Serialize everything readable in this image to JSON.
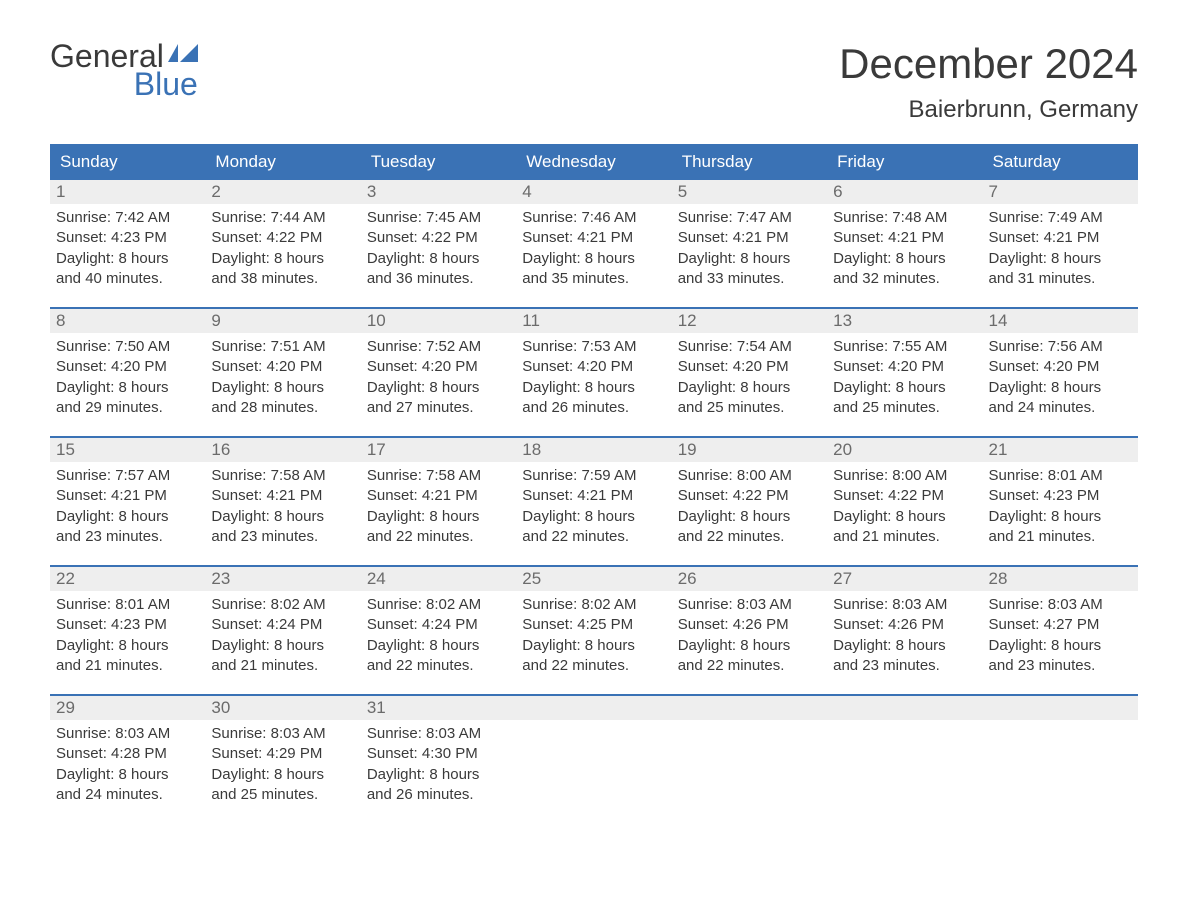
{
  "brand": {
    "word1": "General",
    "word2": "Blue",
    "word1_color": "#3a3a3a",
    "word2_color": "#3a72b5",
    "flag_color": "#3a72b5"
  },
  "title": "December 2024",
  "location": "Baierbrunn, Germany",
  "colors": {
    "header_bg": "#3a72b5",
    "header_text": "#ffffff",
    "daynum_bg": "#eeeeee",
    "daynum_text": "#6b6b6b",
    "body_text": "#3a3a3a",
    "week_divider": "#3a72b5",
    "page_bg": "#ffffff"
  },
  "typography": {
    "title_fontsize": 42,
    "location_fontsize": 24,
    "dayheader_fontsize": 17,
    "daynum_fontsize": 17,
    "body_fontsize": 15,
    "logo_fontsize": 32
  },
  "day_headers": [
    "Sunday",
    "Monday",
    "Tuesday",
    "Wednesday",
    "Thursday",
    "Friday",
    "Saturday"
  ],
  "weeks": [
    [
      {
        "num": "1",
        "sunrise": "Sunrise: 7:42 AM",
        "sunset": "Sunset: 4:23 PM",
        "dl1": "Daylight: 8 hours",
        "dl2": "and 40 minutes."
      },
      {
        "num": "2",
        "sunrise": "Sunrise: 7:44 AM",
        "sunset": "Sunset: 4:22 PM",
        "dl1": "Daylight: 8 hours",
        "dl2": "and 38 minutes."
      },
      {
        "num": "3",
        "sunrise": "Sunrise: 7:45 AM",
        "sunset": "Sunset: 4:22 PM",
        "dl1": "Daylight: 8 hours",
        "dl2": "and 36 minutes."
      },
      {
        "num": "4",
        "sunrise": "Sunrise: 7:46 AM",
        "sunset": "Sunset: 4:21 PM",
        "dl1": "Daylight: 8 hours",
        "dl2": "and 35 minutes."
      },
      {
        "num": "5",
        "sunrise": "Sunrise: 7:47 AM",
        "sunset": "Sunset: 4:21 PM",
        "dl1": "Daylight: 8 hours",
        "dl2": "and 33 minutes."
      },
      {
        "num": "6",
        "sunrise": "Sunrise: 7:48 AM",
        "sunset": "Sunset: 4:21 PM",
        "dl1": "Daylight: 8 hours",
        "dl2": "and 32 minutes."
      },
      {
        "num": "7",
        "sunrise": "Sunrise: 7:49 AM",
        "sunset": "Sunset: 4:21 PM",
        "dl1": "Daylight: 8 hours",
        "dl2": "and 31 minutes."
      }
    ],
    [
      {
        "num": "8",
        "sunrise": "Sunrise: 7:50 AM",
        "sunset": "Sunset: 4:20 PM",
        "dl1": "Daylight: 8 hours",
        "dl2": "and 29 minutes."
      },
      {
        "num": "9",
        "sunrise": "Sunrise: 7:51 AM",
        "sunset": "Sunset: 4:20 PM",
        "dl1": "Daylight: 8 hours",
        "dl2": "and 28 minutes."
      },
      {
        "num": "10",
        "sunrise": "Sunrise: 7:52 AM",
        "sunset": "Sunset: 4:20 PM",
        "dl1": "Daylight: 8 hours",
        "dl2": "and 27 minutes."
      },
      {
        "num": "11",
        "sunrise": "Sunrise: 7:53 AM",
        "sunset": "Sunset: 4:20 PM",
        "dl1": "Daylight: 8 hours",
        "dl2": "and 26 minutes."
      },
      {
        "num": "12",
        "sunrise": "Sunrise: 7:54 AM",
        "sunset": "Sunset: 4:20 PM",
        "dl1": "Daylight: 8 hours",
        "dl2": "and 25 minutes."
      },
      {
        "num": "13",
        "sunrise": "Sunrise: 7:55 AM",
        "sunset": "Sunset: 4:20 PM",
        "dl1": "Daylight: 8 hours",
        "dl2": "and 25 minutes."
      },
      {
        "num": "14",
        "sunrise": "Sunrise: 7:56 AM",
        "sunset": "Sunset: 4:20 PM",
        "dl1": "Daylight: 8 hours",
        "dl2": "and 24 minutes."
      }
    ],
    [
      {
        "num": "15",
        "sunrise": "Sunrise: 7:57 AM",
        "sunset": "Sunset: 4:21 PM",
        "dl1": "Daylight: 8 hours",
        "dl2": "and 23 minutes."
      },
      {
        "num": "16",
        "sunrise": "Sunrise: 7:58 AM",
        "sunset": "Sunset: 4:21 PM",
        "dl1": "Daylight: 8 hours",
        "dl2": "and 23 minutes."
      },
      {
        "num": "17",
        "sunrise": "Sunrise: 7:58 AM",
        "sunset": "Sunset: 4:21 PM",
        "dl1": "Daylight: 8 hours",
        "dl2": "and 22 minutes."
      },
      {
        "num": "18",
        "sunrise": "Sunrise: 7:59 AM",
        "sunset": "Sunset: 4:21 PM",
        "dl1": "Daylight: 8 hours",
        "dl2": "and 22 minutes."
      },
      {
        "num": "19",
        "sunrise": "Sunrise: 8:00 AM",
        "sunset": "Sunset: 4:22 PM",
        "dl1": "Daylight: 8 hours",
        "dl2": "and 22 minutes."
      },
      {
        "num": "20",
        "sunrise": "Sunrise: 8:00 AM",
        "sunset": "Sunset: 4:22 PM",
        "dl1": "Daylight: 8 hours",
        "dl2": "and 21 minutes."
      },
      {
        "num": "21",
        "sunrise": "Sunrise: 8:01 AM",
        "sunset": "Sunset: 4:23 PM",
        "dl1": "Daylight: 8 hours",
        "dl2": "and 21 minutes."
      }
    ],
    [
      {
        "num": "22",
        "sunrise": "Sunrise: 8:01 AM",
        "sunset": "Sunset: 4:23 PM",
        "dl1": "Daylight: 8 hours",
        "dl2": "and 21 minutes."
      },
      {
        "num": "23",
        "sunrise": "Sunrise: 8:02 AM",
        "sunset": "Sunset: 4:24 PM",
        "dl1": "Daylight: 8 hours",
        "dl2": "and 21 minutes."
      },
      {
        "num": "24",
        "sunrise": "Sunrise: 8:02 AM",
        "sunset": "Sunset: 4:24 PM",
        "dl1": "Daylight: 8 hours",
        "dl2": "and 22 minutes."
      },
      {
        "num": "25",
        "sunrise": "Sunrise: 8:02 AM",
        "sunset": "Sunset: 4:25 PM",
        "dl1": "Daylight: 8 hours",
        "dl2": "and 22 minutes."
      },
      {
        "num": "26",
        "sunrise": "Sunrise: 8:03 AM",
        "sunset": "Sunset: 4:26 PM",
        "dl1": "Daylight: 8 hours",
        "dl2": "and 22 minutes."
      },
      {
        "num": "27",
        "sunrise": "Sunrise: 8:03 AM",
        "sunset": "Sunset: 4:26 PM",
        "dl1": "Daylight: 8 hours",
        "dl2": "and 23 minutes."
      },
      {
        "num": "28",
        "sunrise": "Sunrise: 8:03 AM",
        "sunset": "Sunset: 4:27 PM",
        "dl1": "Daylight: 8 hours",
        "dl2": "and 23 minutes."
      }
    ],
    [
      {
        "num": "29",
        "sunrise": "Sunrise: 8:03 AM",
        "sunset": "Sunset: 4:28 PM",
        "dl1": "Daylight: 8 hours",
        "dl2": "and 24 minutes."
      },
      {
        "num": "30",
        "sunrise": "Sunrise: 8:03 AM",
        "sunset": "Sunset: 4:29 PM",
        "dl1": "Daylight: 8 hours",
        "dl2": "and 25 minutes."
      },
      {
        "num": "31",
        "sunrise": "Sunrise: 8:03 AM",
        "sunset": "Sunset: 4:30 PM",
        "dl1": "Daylight: 8 hours",
        "dl2": "and 26 minutes."
      },
      {
        "empty": true
      },
      {
        "empty": true
      },
      {
        "empty": true
      },
      {
        "empty": true
      }
    ]
  ]
}
